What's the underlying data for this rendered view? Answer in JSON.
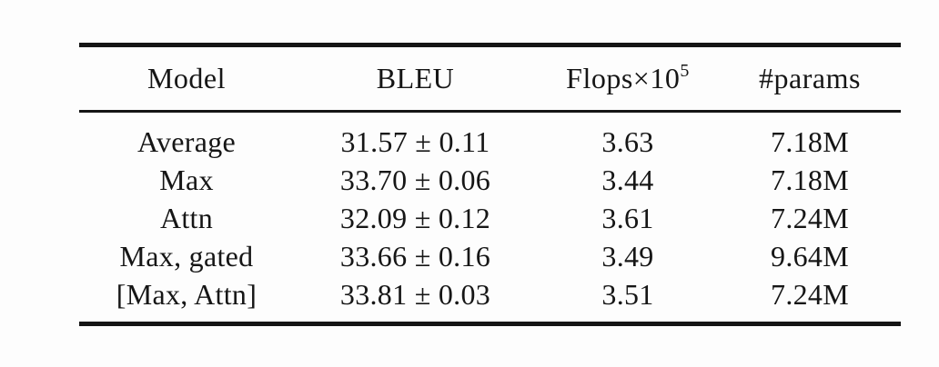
{
  "page": {
    "background": "#fdfdfd",
    "text_color": "#161616",
    "rule_color": "#151515"
  },
  "table": {
    "header": {
      "model": "Model",
      "bleu": "BLEU",
      "flops_label": "Flops×10",
      "flops_exponent": "5",
      "params": "#params"
    },
    "rows": [
      {
        "model": "Average",
        "bleu": "31.57 ± 0.11",
        "flops": "3.63",
        "params": "7.18M"
      },
      {
        "model": "Max",
        "bleu": "33.70 ± 0.06",
        "flops": "3.44",
        "params": "7.18M"
      },
      {
        "model": "Attn",
        "bleu": "32.09 ± 0.12",
        "flops": "3.61",
        "params": "7.24M"
      },
      {
        "model": "Max, gated",
        "bleu": "33.66 ± 0.16",
        "flops": "3.49",
        "params": "9.64M"
      },
      {
        "model": "[Max, Attn]",
        "bleu": "33.81 ± 0.03",
        "flops": "3.51",
        "params": "7.24M"
      }
    ]
  }
}
